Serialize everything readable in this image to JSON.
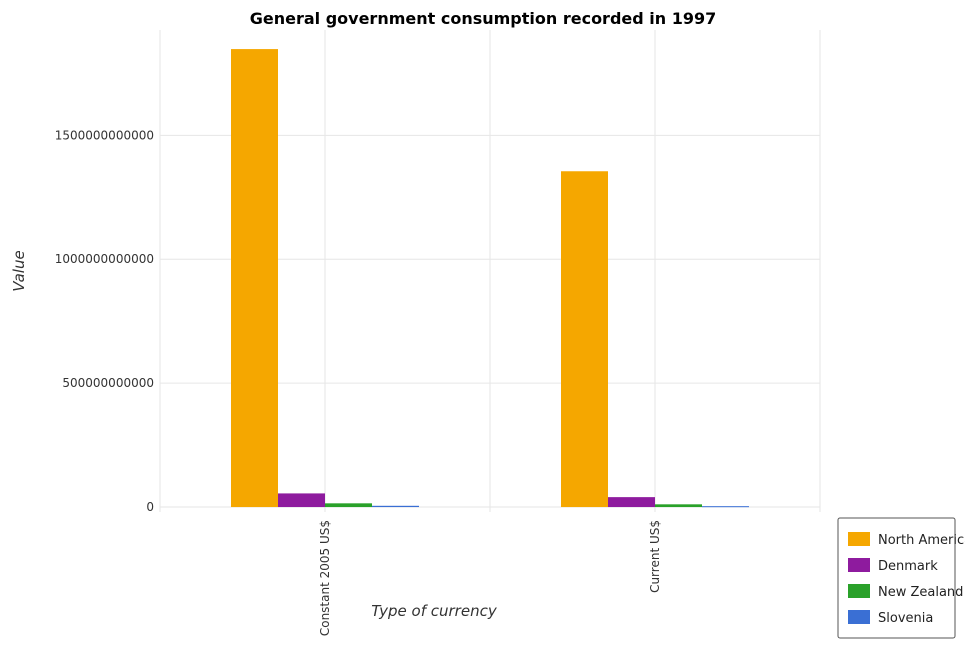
{
  "chart_data": {
    "type": "bar",
    "title": "General government consumption recorded in 1997",
    "xlabel": "Type of currency",
    "ylabel": "Value",
    "categories": [
      "Constant 2005 US$",
      "Current US$"
    ],
    "series": [
      {
        "name": "North America",
        "color": "#f5a700",
        "values": [
          1848000000000,
          1355000000000
        ]
      },
      {
        "name": "Denmark",
        "color": "#8e1b9e",
        "values": [
          55000000000,
          40000000000
        ]
      },
      {
        "name": "New Zealand",
        "color": "#2aa12a",
        "values": [
          15000000000,
          11000000000
        ]
      },
      {
        "name": "Slovenia",
        "color": "#3a6fd4",
        "values": [
          5000000000,
          3500000000
        ]
      }
    ],
    "yticks": [
      0,
      500000000000,
      1000000000000,
      1500000000000
    ],
    "ytick_labels": [
      "0",
      "500000000000",
      "1000000000000",
      "1500000000000"
    ],
    "ylim": [
      -20000000000,
      1925000000000
    ],
    "grid": true,
    "legend_position": "bottom-right"
  }
}
